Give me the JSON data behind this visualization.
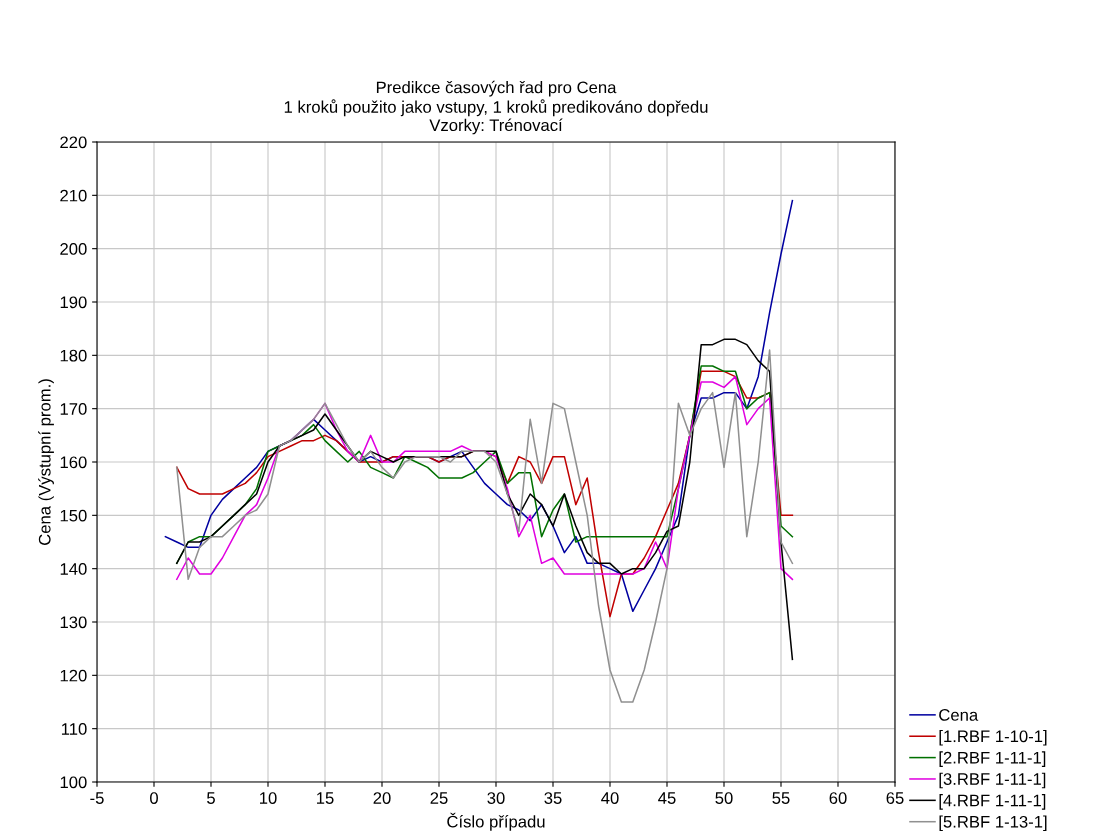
{
  "chart_data": {
    "type": "line",
    "title": "Predikce časových řad pro Cena\n1 kroků použito jako vstupy, 1 kroků predikováno dopředu\nVzorky: Trénovací",
    "xlabel": "Číslo případu",
    "ylabel": "Cena (Výstupní prom.)",
    "xlim": [
      -5,
      65
    ],
    "xticks": [
      -5,
      0,
      5,
      10,
      15,
      20,
      25,
      30,
      35,
      40,
      45,
      50,
      55,
      60,
      65
    ],
    "ylim": [
      100,
      220
    ],
    "yticks": [
      100,
      110,
      120,
      130,
      140,
      150,
      160,
      170,
      180,
      190,
      200,
      210,
      220
    ],
    "grid": true,
    "legend": "bottom right",
    "marker": "none",
    "line_style": "solid",
    "series": [
      {
        "name": "Cena",
        "color": "#0000a0",
        "x": [
          1,
          2,
          3,
          4,
          5,
          6,
          7,
          8,
          9,
          10,
          11,
          12,
          13,
          14,
          15,
          16,
          17,
          18,
          19,
          20,
          21,
          22,
          23,
          24,
          25,
          26,
          27,
          28,
          29,
          30,
          31,
          32,
          33,
          34,
          35,
          36,
          37,
          38,
          39,
          40,
          41,
          42,
          43,
          44,
          45,
          46,
          47,
          48,
          49,
          50,
          51,
          52,
          53,
          54,
          55,
          56
        ],
        "values": [
          146,
          145,
          144,
          144,
          150,
          153,
          155,
          157,
          159,
          162,
          163,
          164,
          166,
          168,
          166,
          164,
          162,
          160,
          161,
          160,
          161,
          161,
          161,
          161,
          160,
          161,
          162,
          159,
          156,
          154,
          152,
          151,
          149,
          152,
          148,
          143,
          146,
          141,
          141,
          140,
          139,
          132,
          136,
          140,
          145,
          150,
          165,
          172,
          172,
          173,
          173,
          170,
          176,
          188,
          199,
          209
        ]
      },
      {
        "name": "[1.RBF 1-10-1]",
        "color": "#c00000",
        "x": [
          2,
          3,
          4,
          5,
          6,
          7,
          8,
          9,
          10,
          11,
          12,
          13,
          14,
          15,
          16,
          17,
          18,
          19,
          20,
          21,
          22,
          23,
          24,
          25,
          26,
          27,
          28,
          29,
          30,
          31,
          32,
          33,
          34,
          35,
          36,
          37,
          38,
          39,
          40,
          41,
          42,
          43,
          44,
          45,
          46,
          47,
          48,
          49,
          50,
          51,
          52,
          53,
          54,
          55,
          56
        ],
        "values": [
          159,
          155,
          154,
          154,
          154,
          155,
          156,
          158,
          161,
          162,
          163,
          164,
          164,
          165,
          164,
          162,
          160,
          160,
          160,
          161,
          161,
          161,
          161,
          160,
          161,
          161,
          162,
          162,
          161,
          156,
          161,
          160,
          156,
          161,
          161,
          152,
          157,
          143,
          131,
          139,
          139,
          142,
          146,
          151,
          156,
          165,
          177,
          177,
          177,
          176,
          172,
          172,
          173,
          150,
          150
        ]
      },
      {
        "name": "[2.RBF 1-11-1]",
        "color": "#007000",
        "x": [
          2,
          3,
          4,
          5,
          6,
          7,
          8,
          9,
          10,
          11,
          12,
          13,
          14,
          15,
          16,
          17,
          18,
          19,
          20,
          21,
          22,
          23,
          24,
          25,
          26,
          27,
          28,
          29,
          30,
          31,
          32,
          33,
          34,
          35,
          36,
          37,
          38,
          39,
          40,
          41,
          42,
          43,
          44,
          45,
          46,
          47,
          48,
          49,
          50,
          51,
          52,
          53,
          54,
          55,
          56
        ],
        "values": [
          141,
          145,
          146,
          146,
          148,
          150,
          152,
          155,
          162,
          163,
          164,
          165,
          167,
          164,
          162,
          160,
          162,
          159,
          158,
          157,
          161,
          160,
          159,
          157,
          157,
          157,
          158,
          160,
          162,
          156,
          158,
          158,
          146,
          151,
          154,
          145,
          146,
          146,
          146,
          146,
          146,
          146,
          146,
          146,
          155,
          165,
          178,
          178,
          177,
          177,
          170,
          172,
          173,
          148,
          146
        ]
      },
      {
        "name": "[3.RBF 1-11-1]",
        "color": "#e000e0",
        "x": [
          2,
          3,
          4,
          5,
          6,
          7,
          8,
          9,
          10,
          11,
          12,
          13,
          14,
          15,
          16,
          17,
          18,
          19,
          20,
          21,
          22,
          23,
          24,
          25,
          26,
          27,
          28,
          29,
          30,
          31,
          32,
          33,
          34,
          35,
          36,
          37,
          38,
          39,
          40,
          41,
          42,
          43,
          44,
          45,
          46,
          47,
          48,
          49,
          50,
          51,
          52,
          53,
          54,
          55,
          56
        ],
        "values": [
          138,
          142,
          139,
          139,
          142,
          146,
          150,
          152,
          157,
          163,
          164,
          166,
          168,
          171,
          166,
          162,
          160,
          165,
          160,
          160,
          162,
          162,
          162,
          162,
          162,
          163,
          162,
          162,
          161,
          155,
          146,
          150,
          141,
          142,
          139,
          139,
          139,
          139,
          139,
          139,
          139,
          140,
          145,
          140,
          155,
          165,
          175,
          175,
          174,
          176,
          167,
          170,
          172,
          140,
          138
        ]
      },
      {
        "name": "[4.RBF 1-11-1]",
        "color": "#000000",
        "x": [
          2,
          3,
          4,
          5,
          6,
          7,
          8,
          9,
          10,
          11,
          12,
          13,
          14,
          15,
          16,
          17,
          18,
          19,
          20,
          21,
          22,
          23,
          24,
          25,
          26,
          27,
          28,
          29,
          30,
          31,
          32,
          33,
          34,
          35,
          36,
          37,
          38,
          39,
          40,
          41,
          42,
          43,
          44,
          45,
          46,
          47,
          48,
          49,
          50,
          51,
          52,
          53,
          54,
          55,
          56
        ],
        "values": [
          141,
          145,
          145,
          146,
          148,
          150,
          152,
          154,
          160,
          163,
          164,
          165,
          166,
          169,
          166,
          163,
          160,
          162,
          161,
          160,
          161,
          161,
          161,
          161,
          161,
          161,
          162,
          162,
          162,
          154,
          150,
          154,
          152,
          148,
          154,
          148,
          143,
          141,
          141,
          139,
          140,
          140,
          143,
          147,
          148,
          160,
          182,
          182,
          183,
          183,
          182,
          179,
          177,
          145,
          123
        ]
      },
      {
        "name": "[5.RBF 1-13-1]",
        "color": "#909090",
        "x": [
          2,
          3,
          4,
          5,
          6,
          7,
          8,
          9,
          10,
          11,
          12,
          13,
          14,
          15,
          16,
          17,
          18,
          19,
          20,
          21,
          22,
          23,
          24,
          25,
          26,
          27,
          28,
          29,
          30,
          31,
          32,
          33,
          34,
          35,
          36,
          37,
          38,
          39,
          40,
          41,
          42,
          43,
          44,
          45,
          46,
          47,
          48,
          49,
          50,
          51,
          52,
          53,
          54,
          55,
          56
        ],
        "values": [
          159,
          138,
          144,
          146,
          146,
          148,
          150,
          151,
          154,
          163,
          164,
          166,
          168,
          171,
          167,
          163,
          160,
          162,
          159,
          157,
          160,
          161,
          161,
          161,
          160,
          162,
          162,
          162,
          160,
          154,
          147,
          168,
          156,
          171,
          170,
          160,
          150,
          133,
          121,
          115,
          115,
          121,
          130,
          140,
          171,
          165,
          170,
          173,
          159,
          173,
          146,
          160,
          181,
          145,
          141
        ]
      }
    ]
  }
}
